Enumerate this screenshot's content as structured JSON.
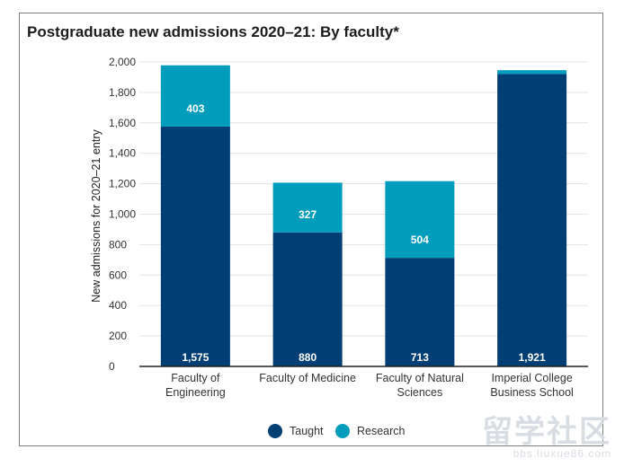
{
  "chart_data": {
    "type": "bar",
    "stacked": true,
    "title": "Postgraduate new admissions 2020–21: By faculty*",
    "xlabel": "",
    "ylabel": "New admissions for 2020–21 entry",
    "ylim": [
      0,
      2000
    ],
    "yticks": [
      0,
      200,
      400,
      600,
      800,
      1000,
      1200,
      1400,
      1600,
      1800,
      2000
    ],
    "ytick_labels": [
      "0",
      "200",
      "400",
      "600",
      "800",
      "1,000",
      "1,200",
      "1,400",
      "1,600",
      "1,800",
      "2,000"
    ],
    "categories": [
      [
        "Faculty of",
        "Engineering"
      ],
      [
        "Faculty of Medicine"
      ],
      [
        "Faculty of Natural",
        "Sciences"
      ],
      [
        "Imperial College",
        "Business School"
      ]
    ],
    "series": [
      {
        "name": "Taught",
        "color": "#003e74",
        "values": [
          1575,
          880,
          713,
          1921
        ],
        "labels": [
          "1,575",
          "880",
          "713",
          "1,921"
        ]
      },
      {
        "name": "Research",
        "color": "#009cbc",
        "values": [
          403,
          327,
          504,
          25
        ],
        "labels": [
          "403",
          "327",
          "504",
          ""
        ]
      }
    ],
    "legend": {
      "position": "bottom-center",
      "entries": [
        "Taught",
        "Research"
      ]
    },
    "grid": true
  },
  "watermark": {
    "main": "留学社区",
    "sub": "bbs.liuxue86.com"
  }
}
